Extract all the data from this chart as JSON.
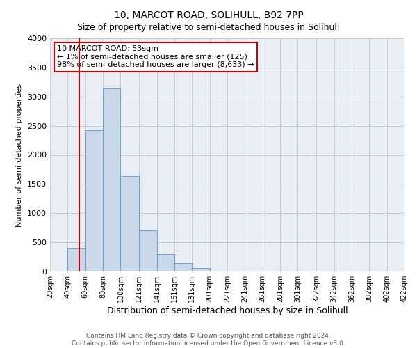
{
  "title": "10, MARCOT ROAD, SOLIHULL, B92 7PP",
  "subtitle": "Size of property relative to semi-detached houses in Solihull",
  "xlabel": "Distribution of semi-detached houses by size in Solihull",
  "ylabel": "Number of semi-detached properties",
  "footer_line1": "Contains HM Land Registry data © Crown copyright and database right 2024.",
  "footer_line2": "Contains public sector information licensed under the Open Government Licence v3.0.",
  "bin_labels": [
    "20sqm",
    "40sqm",
    "60sqm",
    "80sqm",
    "100sqm",
    "121sqm",
    "141sqm",
    "161sqm",
    "181sqm",
    "201sqm",
    "221sqm",
    "241sqm",
    "261sqm",
    "281sqm",
    "301sqm",
    "322sqm",
    "342sqm",
    "362sqm",
    "382sqm",
    "402sqm",
    "422sqm"
  ],
  "bar_heights": [
    0,
    390,
    2420,
    3140,
    1630,
    700,
    300,
    140,
    60,
    0,
    0,
    0,
    0,
    0,
    0,
    0,
    0,
    0,
    0,
    0
  ],
  "bar_color": "#c8d8e8",
  "bar_edge_color": "#5b9bd5",
  "ylim": [
    0,
    4000
  ],
  "yticks": [
    0,
    500,
    1000,
    1500,
    2000,
    2500,
    3000,
    3500,
    4000
  ],
  "marker_x": 53,
  "marker_color": "#cc0000",
  "annotation_title": "10 MARCOT ROAD: 53sqm",
  "annotation_line1": "← 1% of semi-detached houses are smaller (125)",
  "annotation_line2": "98% of semi-detached houses are larger (8,633) →",
  "annotation_box_color": "#ffffff",
  "annotation_border_color": "#cc0000",
  "bin_edges": [
    20,
    40,
    60,
    80,
    100,
    121,
    141,
    161,
    181,
    201,
    221,
    241,
    261,
    281,
    301,
    322,
    342,
    362,
    382,
    402,
    422
  ],
  "xlim_min": 20,
  "xlim_max": 422,
  "bg_color": "#e8eef4",
  "grid_color": "#c5cfd8",
  "title_fontsize": 10,
  "subtitle_fontsize": 9,
  "ylabel_fontsize": 8,
  "xlabel_fontsize": 9,
  "tick_fontsize": 7,
  "footer_fontsize": 6.5,
  "annotation_fontsize": 8
}
